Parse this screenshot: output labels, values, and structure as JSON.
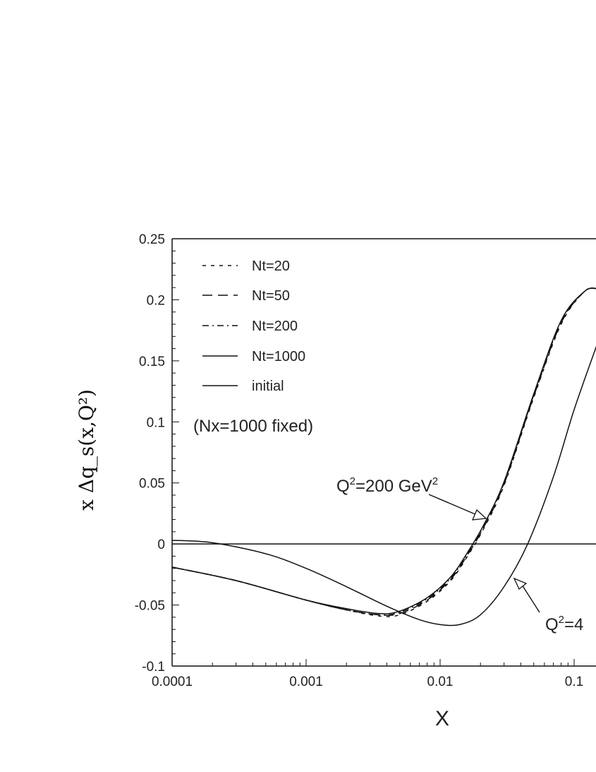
{
  "chart_data": {
    "type": "line",
    "xlabel": "X",
    "ylabel": "x Δq_s(x,Q²)",
    "x_scale": "log",
    "xlim": [
      0.0001,
      0.15
    ],
    "ylim": [
      -0.1,
      0.25
    ],
    "x_tick_labels": [
      "0.0001",
      "0.001",
      "0.01",
      "0.1"
    ],
    "y_tick_labels": [
      "0.25",
      "0.2",
      "0.15",
      "0.1",
      "0.05",
      "0",
      "-0.05",
      "-0.1"
    ],
    "legend": {
      "placement": "top-left",
      "entries": [
        "Nt=20",
        "Nt=50",
        "Nt=200",
        "Nt=1000",
        "initial"
      ]
    },
    "note": "(Nx=1000 fixed)",
    "annotations": [
      {
        "text_main": "Q",
        "sup1": "2",
        "text_mid": "=200 GeV",
        "sup2": "2",
        "target": [
          0.021,
          0.02
        ]
      },
      {
        "text_main": "Q",
        "sup1": "2",
        "text_mid": "=4",
        "target": [
          0.037,
          -0.032
        ]
      }
    ],
    "series": [
      {
        "group": "Q2=200 GeV2",
        "style": "dashed",
        "x": [
          0.0001,
          0.0003,
          0.001,
          0.002,
          0.0035,
          0.005,
          0.008,
          0.012,
          0.016,
          0.021,
          0.03,
          0.05,
          0.08,
          0.12,
          0.15
        ],
        "y": [
          -0.019,
          -0.03,
          -0.046,
          -0.054,
          -0.059,
          -0.058,
          -0.047,
          -0.03,
          -0.01,
          0.012,
          0.048,
          0.12,
          0.18,
          0.207,
          0.209
        ]
      },
      {
        "group": "Q2=200 GeV2",
        "style": "long-dashed",
        "x": [
          0.0001,
          0.0003,
          0.001,
          0.002,
          0.0035,
          0.005,
          0.008,
          0.012,
          0.016,
          0.021,
          0.03,
          0.05,
          0.08,
          0.12,
          0.15
        ],
        "y": [
          -0.019,
          -0.03,
          -0.046,
          -0.054,
          -0.058,
          -0.057,
          -0.046,
          -0.029,
          -0.009,
          0.013,
          0.049,
          0.121,
          0.181,
          0.207,
          0.209
        ]
      },
      {
        "group": "Q2=200 GeV2",
        "style": "dash-dot",
        "x": [
          0.0001,
          0.0003,
          0.001,
          0.002,
          0.0035,
          0.005,
          0.008,
          0.012,
          0.016,
          0.021,
          0.03,
          0.05,
          0.08,
          0.12,
          0.15
        ],
        "y": [
          -0.019,
          -0.03,
          -0.046,
          -0.054,
          -0.058,
          -0.056,
          -0.045,
          -0.028,
          -0.008,
          0.014,
          0.05,
          0.122,
          0.182,
          0.207,
          0.209
        ]
      },
      {
        "group": "Q2=200 GeV2",
        "style": "solid",
        "x": [
          0.0001,
          0.0003,
          0.001,
          0.002,
          0.0035,
          0.005,
          0.008,
          0.012,
          0.016,
          0.021,
          0.03,
          0.05,
          0.08,
          0.12,
          0.15
        ],
        "y": [
          -0.019,
          -0.03,
          -0.046,
          -0.053,
          -0.057,
          -0.055,
          -0.044,
          -0.027,
          -0.007,
          0.015,
          0.051,
          0.123,
          0.183,
          0.207,
          0.209
        ]
      },
      {
        "group": "Q2=4",
        "style": "solid",
        "x": [
          0.0001,
          0.0002,
          0.0005,
          0.001,
          0.002,
          0.004,
          0.007,
          0.01,
          0.014,
          0.02,
          0.03,
          0.045,
          0.07,
          0.1,
          0.15
        ],
        "y": [
          0.003,
          0.001,
          -0.008,
          -0.02,
          -0.035,
          -0.051,
          -0.062,
          -0.066,
          -0.066,
          -0.058,
          -0.035,
          0.0,
          0.055,
          0.11,
          0.165
        ]
      },
      {
        "group": "zero line",
        "style": "solid",
        "x": [
          0.0001,
          0.15
        ],
        "y": [
          0,
          0
        ]
      }
    ]
  }
}
